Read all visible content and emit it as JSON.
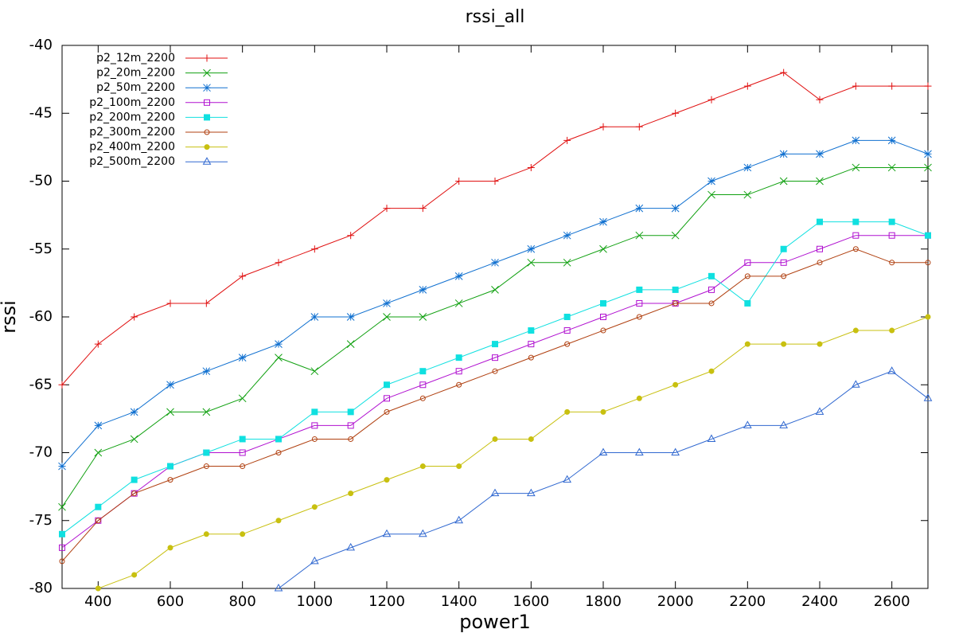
{
  "chart_data": {
    "type": "line",
    "title": "rssi_all",
    "x_label": "power1",
    "y_label": "rssi",
    "x": [
      300,
      400,
      500,
      600,
      700,
      800,
      900,
      1000,
      1100,
      1200,
      1300,
      1400,
      1500,
      1600,
      1700,
      1800,
      1900,
      2000,
      2100,
      2200,
      2300,
      2400,
      2500,
      2600,
      2700
    ],
    "xlim": [
      300,
      2700
    ],
    "xticks": [
      400,
      600,
      800,
      1000,
      1200,
      1400,
      1600,
      1800,
      2000,
      2200,
      2400,
      2600
    ],
    "ylim": [
      -80,
      -40
    ],
    "yticks": [
      -80,
      -75,
      -70,
      -65,
      -60,
      -55,
      -50,
      -45,
      -40
    ],
    "grid": false,
    "legend": "top-left",
    "series": [
      {
        "name": "p2_12m_2200",
        "color": "#e01010",
        "marker": "plus",
        "values": [
          -65,
          -62,
          -60,
          -59,
          -59,
          -57,
          -56,
          -55,
          -54,
          -52,
          -52,
          -50,
          -50,
          -49,
          -47,
          -46,
          -46,
          -45,
          -44,
          -43,
          -42,
          -44,
          -43,
          -43,
          -43
        ]
      },
      {
        "name": "p2_20m_2200",
        "color": "#10a010",
        "marker": "cross",
        "values": [
          -74,
          -70,
          -69,
          -67,
          -67,
          -66,
          -63,
          -64,
          -62,
          -60,
          -60,
          -59,
          -58,
          -56,
          -56,
          -55,
          -54,
          -54,
          -51,
          -51,
          -50,
          -50,
          -49,
          -49,
          -49
        ]
      },
      {
        "name": "p2_50m_2200",
        "color": "#1070d0",
        "marker": "star",
        "values": [
          -71,
          -68,
          -67,
          -65,
          -64,
          -63,
          -62,
          -60,
          -60,
          -59,
          -58,
          -57,
          -56,
          -55,
          -54,
          -53,
          -52,
          -52,
          -50,
          -49,
          -48,
          -48,
          -47,
          -47,
          -48
        ]
      },
      {
        "name": "p2_100m_2200",
        "color": "#b010d0",
        "marker": "box",
        "values": [
          -77,
          -75,
          -73,
          -71,
          -70,
          -70,
          -69,
          -68,
          -68,
          -66,
          -65,
          -64,
          -63,
          -62,
          -61,
          -60,
          -59,
          -59,
          -58,
          -56,
          -56,
          -55,
          -54,
          -54,
          -54
        ]
      },
      {
        "name": "p2_200m_2200",
        "color": "#10e0e0",
        "marker": "filledbox",
        "values": [
          -76,
          -74,
          -72,
          -71,
          -70,
          -69,
          -69,
          -67,
          -67,
          -65,
          -64,
          -63,
          -62,
          -61,
          -60,
          -59,
          -58,
          -58,
          -57,
          -59,
          -55,
          -53,
          -53,
          -53,
          -54
        ]
      },
      {
        "name": "p2_300m_2200",
        "color": "#b04010",
        "marker": "circle",
        "values": [
          -78,
          -75,
          -73,
          -72,
          -71,
          -71,
          -70,
          -69,
          -69,
          -67,
          -66,
          -65,
          -64,
          -63,
          -62,
          -61,
          -60,
          -59,
          -59,
          -57,
          -57,
          -56,
          -55,
          -56,
          -56
        ]
      },
      {
        "name": "p2_400m_2200",
        "color": "#c8c010",
        "marker": "filledcircle",
        "values": [
          null,
          -80,
          -79,
          -77,
          -76,
          -76,
          -75,
          -74,
          -73,
          -72,
          -71,
          -71,
          -69,
          -69,
          -67,
          -67,
          -66,
          -65,
          -64,
          -62,
          -62,
          -62,
          -61,
          -61,
          -60
        ]
      },
      {
        "name": "p2_500m_2200",
        "color": "#3068d0",
        "marker": "triangle",
        "values": [
          null,
          null,
          null,
          null,
          null,
          null,
          -80,
          -78,
          -77,
          -76,
          -76,
          -75,
          -73,
          -73,
          -72,
          -70,
          -70,
          -70,
          -69,
          -68,
          -68,
          -67,
          -65,
          -64,
          -66
        ]
      }
    ]
  }
}
